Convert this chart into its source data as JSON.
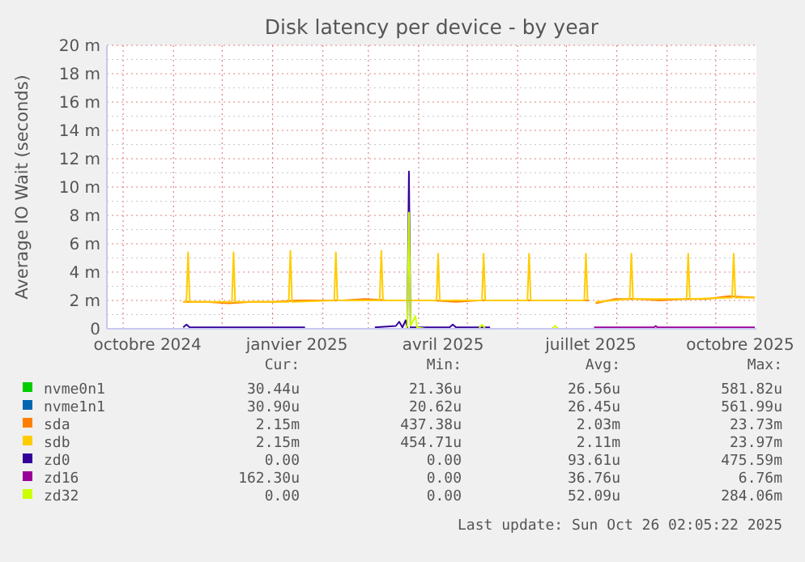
{
  "chart_data": {
    "type": "line",
    "title": "Disk latency per device - by year",
    "ylabel": "Average IO Wait (seconds)",
    "legend": "bottom",
    "grid": true,
    "marker": "none",
    "line_style": "solid",
    "xlim": [
      "2024-09-21",
      "2025-10-26"
    ],
    "xticks": [
      {
        "value": "2024-10-16",
        "label": "octobre 2024"
      },
      {
        "value": "2025-01-16",
        "label": "janvier 2025"
      },
      {
        "value": "2025-04-16",
        "label": "avril 2025"
      },
      {
        "value": "2025-07-16",
        "label": "juillet 2025"
      },
      {
        "value": "2025-10-16",
        "label": "octobre 2025"
      }
    ],
    "ylim": [
      0,
      20
    ],
    "yticks": [
      0,
      {
        "value": 2,
        "label": "2 m"
      },
      {
        "value": 4,
        "label": "4 m"
      },
      {
        "value": 6,
        "label": "6 m"
      },
      {
        "value": 8,
        "label": "8 m"
      },
      {
        "value": 10,
        "label": "10 m"
      },
      {
        "value": 12,
        "label": "12 m"
      },
      {
        "value": 14,
        "label": "14 m"
      },
      {
        "value": 16,
        "label": "16 m"
      },
      {
        "value": 18,
        "label": "18 m"
      },
      {
        "value": 20,
        "label": "20 m"
      }
    ],
    "series": [
      {
        "name": "nvme0n1",
        "color": "#00cc00"
      },
      {
        "name": "nvme1n1",
        "color": "#0066b3"
      },
      {
        "name": "sda",
        "color": "#ff8000",
        "x": [
          "2024-11-07",
          "2024-11-21",
          "2024-12-05",
          "2024-12-19",
          "2025-01-02",
          "2025-01-16",
          "2025-01-30",
          "2025-02-13",
          "2025-02-27",
          "2025-03-13",
          "2025-03-27",
          "2025-04-10",
          "2025-04-24",
          "2025-05-08",
          "2025-05-22",
          "2025-06-05",
          "2025-06-19",
          "2025-07-03",
          "2025-07-15",
          "2025-07-17",
          "2025-07-19",
          "2025-07-31",
          "2025-08-14",
          "2025-08-28",
          "2025-09-11",
          "2025-09-25",
          "2025-10-09",
          "2025-10-25"
        ],
        "values": [
          1.9,
          1.9,
          1.8,
          1.9,
          1.9,
          2.0,
          2.0,
          2.0,
          2.1,
          2.0,
          2.0,
          2.0,
          1.9,
          2.0,
          2.0,
          2.0,
          2.0,
          2.0,
          2.0,
          null,
          1.8,
          2.1,
          2.1,
          2.0,
          2.1,
          2.1,
          2.3,
          2.2
        ]
      },
      {
        "name": "sdb",
        "color": "#ffcc00",
        "x": [
          "2024-11-07",
          "2024-11-09",
          "2024-11-10",
          "2024-11-11",
          "2024-12-07",
          "2024-12-08",
          "2024-12-09",
          "2025-01-11",
          "2025-01-12",
          "2025-01-13",
          "2025-02-08",
          "2025-02-09",
          "2025-02-10",
          "2025-03-08",
          "2025-03-09",
          "2025-03-10",
          "2025-04-12",
          "2025-04-13",
          "2025-04-14",
          "2025-05-10",
          "2025-05-11",
          "2025-05-12",
          "2025-06-07",
          "2025-06-08",
          "2025-06-09",
          "2025-07-12",
          "2025-07-13",
          "2025-07-14",
          "2025-07-17",
          "2025-07-19",
          "2025-08-09",
          "2025-08-10",
          "2025-08-11",
          "2025-09-13",
          "2025-09-14",
          "2025-09-15",
          "2025-10-11",
          "2025-10-12",
          "2025-10-13",
          "2025-10-25"
        ],
        "values": [
          1.9,
          1.9,
          5.4,
          1.9,
          1.9,
          5.4,
          1.9,
          1.9,
          5.5,
          1.9,
          2.0,
          5.4,
          2.0,
          2.0,
          5.5,
          2.0,
          2.0,
          5.3,
          2.0,
          2.0,
          5.3,
          2.0,
          2.0,
          5.3,
          2.0,
          2.0,
          5.3,
          2.0,
          null,
          1.9,
          2.1,
          5.3,
          2.1,
          2.1,
          5.3,
          2.1,
          2.2,
          5.3,
          2.2,
          2.2
        ]
      },
      {
        "name": "zd0",
        "color": "#330099",
        "x": [
          "2024-11-07",
          "2024-11-09",
          "2024-11-11",
          "2025-01-21",
          "2025-01-22",
          "2025-03-05",
          "2025-03-18",
          "2025-03-20",
          "2025-03-22",
          "2025-03-24",
          "2025-03-25",
          "2025-03-26",
          "2025-03-27",
          "2025-04-20",
          "2025-04-22",
          "2025-04-24",
          "2025-05-15"
        ],
        "values": [
          0.1,
          0.3,
          0.1,
          0.1,
          null,
          0.1,
          0.2,
          0.5,
          0.1,
          0.6,
          0.1,
          11.1,
          0.1,
          0.1,
          0.3,
          0.1,
          0.1
        ]
      },
      {
        "name": "zd16",
        "color": "#990099",
        "x": [
          "2025-07-18",
          "2025-08-24",
          "2025-08-25",
          "2025-08-26",
          "2025-10-25"
        ],
        "values": [
          0.1,
          0.1,
          0.2,
          0.1,
          0.1
        ]
      },
      {
        "name": "zd32",
        "color": "#ccff00",
        "x": [
          "2025-03-24",
          "2025-03-25",
          "2025-03-26",
          "2025-03-27",
          "2025-03-30",
          "2025-03-31",
          "2025-04-05",
          "2025-05-08",
          "2025-05-10",
          "2025-05-12",
          "2025-06-22",
          "2025-06-24",
          "2025-06-26"
        ],
        "values": [
          0,
          0.2,
          8.2,
          0.2,
          0.9,
          0.1,
          0,
          0,
          0.3,
          0,
          0,
          0.2,
          0
        ]
      }
    ],
    "annotations": [
      "Cur:",
      "Min:",
      "Avg:",
      "Max:",
      "30.44u",
      "21.36u",
      "26.56u",
      "581.82u",
      "30.90u",
      "20.62u",
      "26.45u",
      "561.99u",
      "2.15m",
      "437.38u",
      "2.03m",
      "23.73m",
      "2.15m",
      "454.71u",
      "2.11m",
      "23.97m",
      "0.00",
      "0.00",
      "93.61u",
      "475.59m",
      "162.30u",
      "0.00",
      "36.76u",
      "6.76m",
      "0.00",
      "0.00",
      "52.09u",
      "284.06m",
      "Last update: Sun Oct 26 02:05:22 2025"
    ]
  }
}
